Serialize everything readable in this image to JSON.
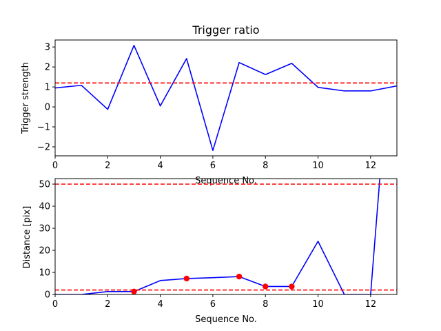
{
  "chart_data": [
    {
      "type": "line",
      "title": "Trigger ratio",
      "xlabel": "Sequence No.",
      "ylabel": "Trigger strength",
      "xlim": [
        0,
        13
      ],
      "ylim": [
        -2.45,
        3.35
      ],
      "xticks": [
        0,
        2,
        4,
        6,
        8,
        10,
        12
      ],
      "yticks": [
        -2,
        -1,
        0,
        1,
        2,
        3
      ],
      "ytick_labels": [
        "−2",
        "−1",
        "0",
        "1",
        "2",
        "3"
      ],
      "grid": false,
      "series": [
        {
          "color": "#0000ff",
          "x": [
            0,
            1,
            2,
            3,
            4,
            5,
            6,
            7,
            8,
            9,
            10,
            11,
            12,
            13
          ],
          "y": [
            0.95,
            1.08,
            -0.12,
            3.08,
            0.05,
            2.42,
            -2.18,
            2.22,
            1.62,
            2.18,
            0.98,
            0.8,
            0.8,
            1.05
          ]
        }
      ],
      "hlines": [
        {
          "y": 1.2,
          "color": "#ff0000",
          "style": "dashed"
        }
      ]
    },
    {
      "type": "line",
      "title": "",
      "xlabel": "Sequence No.",
      "ylabel": "Distance [pix]",
      "xlim": [
        0,
        13
      ],
      "ylim": [
        0,
        52.5
      ],
      "xticks": [
        0,
        2,
        4,
        6,
        8,
        10,
        12
      ],
      "yticks": [
        0,
        10,
        20,
        30,
        40,
        50
      ],
      "ytick_labels": [
        "0",
        "10",
        "20",
        "30",
        "40",
        "50"
      ],
      "grid": false,
      "series": [
        {
          "color": "#0000ff",
          "x": [
            0,
            1,
            2,
            3,
            4,
            5,
            6,
            7,
            8,
            9,
            10,
            11,
            12,
            12.35
          ],
          "y": [
            0,
            0,
            1.3,
            1.3,
            6.3,
            7.2,
            7.6,
            8.1,
            3.6,
            3.6,
            24.1,
            0,
            0,
            52.5
          ]
        }
      ],
      "markers": {
        "color": "#ff0000",
        "x": [
          3,
          5,
          7,
          8,
          9
        ],
        "y": [
          1.3,
          7.2,
          8.1,
          3.6,
          3.6
        ]
      },
      "hlines": [
        {
          "y": 50,
          "color": "#ff0000",
          "style": "dashed"
        },
        {
          "y": 2,
          "color": "#ff0000",
          "style": "dashed"
        }
      ]
    }
  ]
}
